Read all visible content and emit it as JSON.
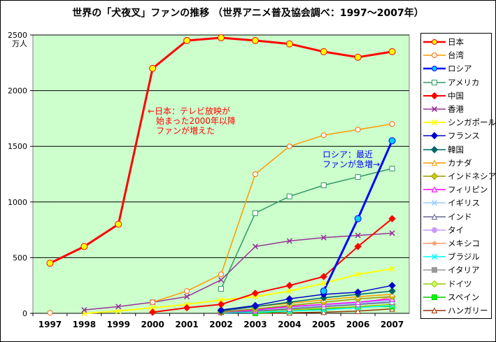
{
  "chart_data": {
    "type": "line",
    "title": "世界の「犬夜叉」ファンの推移 （世界アニメ普及協会調べ：1997～2007年）",
    "y_unit_label": "万人",
    "categories": [
      "1997",
      "1998",
      "1999",
      "2000",
      "2001",
      "2002",
      "2003",
      "2004",
      "2005",
      "2006",
      "2007"
    ],
    "ylim": [
      0,
      2500
    ],
    "yticks": [
      0,
      500,
      1000,
      1500,
      2000,
      2500
    ],
    "grid": true,
    "legend_position": "right",
    "series": [
      {
        "name": "日本",
        "color": "#ff0000",
        "marker": "circle",
        "markerFill": "#ffff00",
        "width": 3,
        "values": [
          450,
          600,
          800,
          2200,
          2450,
          2475,
          2450,
          2420,
          2350,
          2300,
          2350
        ]
      },
      {
        "name": "台湾",
        "color": "#ff9900",
        "marker": "circle",
        "markerFill": "#ffffff",
        "markerStroke": "#ff6600",
        "width": 1.5,
        "values": [
          5,
          null,
          null,
          100,
          200,
          350,
          1250,
          1500,
          1600,
          1650,
          1700
        ]
      },
      {
        "name": "ロシア",
        "color": "#0000ff",
        "marker": "circle",
        "markerFill": "#00ccff",
        "width": 3,
        "values": [
          null,
          null,
          null,
          null,
          null,
          null,
          null,
          null,
          200,
          850,
          1550
        ]
      },
      {
        "name": "アメリカ",
        "color": "#339966",
        "marker": "square",
        "markerFill": "#ffffff",
        "width": 1.5,
        "values": [
          null,
          null,
          null,
          null,
          null,
          220,
          900,
          1050,
          1150,
          1225,
          1300
        ]
      },
      {
        "name": "中国",
        "color": "#ff0000",
        "marker": "diamond",
        "markerFill": "#ff0000",
        "width": 2,
        "values": [
          null,
          null,
          null,
          10,
          50,
          80,
          180,
          250,
          330,
          600,
          850
        ]
      },
      {
        "name": "香港",
        "color": "#993399",
        "marker": "x",
        "markerFill": "#cc66cc",
        "width": 1.5,
        "values": [
          null,
          30,
          60,
          100,
          150,
          300,
          600,
          650,
          680,
          700,
          720
        ]
      },
      {
        "name": "シンガポール",
        "color": "#ffff00",
        "marker": "x",
        "markerFill": "#ffff00",
        "width": 2,
        "values": [
          null,
          0,
          20,
          50,
          80,
          120,
          150,
          200,
          270,
          350,
          400
        ]
      },
      {
        "name": "フランス",
        "color": "#0000cc",
        "marker": "diamond",
        "markerFill": "#0000cc",
        "width": 1.5,
        "values": [
          null,
          null,
          null,
          null,
          null,
          30,
          70,
          130,
          170,
          190,
          250
        ]
      },
      {
        "name": "韓国",
        "color": "#006666",
        "marker": "diamond",
        "markerFill": "#006666",
        "width": 1.5,
        "values": [
          null,
          null,
          null,
          null,
          null,
          20,
          60,
          100,
          140,
          170,
          200
        ]
      },
      {
        "name": "カナダ",
        "color": "#ff9900",
        "marker": "triangle",
        "markerFill": "#ffffff",
        "width": 1.5,
        "values": [
          null,
          null,
          null,
          null,
          null,
          30,
          60,
          90,
          120,
          150,
          170
        ]
      },
      {
        "name": "インドネシア",
        "color": "#999900",
        "marker": "diamond",
        "markerFill": "#cccc00",
        "width": 1.5,
        "values": [
          null,
          null,
          null,
          null,
          null,
          10,
          40,
          70,
          100,
          130,
          150
        ]
      },
      {
        "name": "フィリピン",
        "color": "#ff00ff",
        "marker": "triangle",
        "markerFill": "#ffffff",
        "width": 1.5,
        "values": [
          null,
          null,
          null,
          null,
          null,
          10,
          30,
          60,
          80,
          100,
          130
        ]
      },
      {
        "name": "イギリス",
        "color": "#99ccff",
        "marker": "x",
        "markerFill": "#99ccff",
        "width": 1.5,
        "values": [
          null,
          null,
          null,
          null,
          null,
          10,
          30,
          50,
          70,
          90,
          110
        ]
      },
      {
        "name": "インド",
        "color": "#666699",
        "marker": "triangle",
        "markerFill": "#ffffff",
        "width": 1.5,
        "values": [
          null,
          null,
          null,
          null,
          null,
          10,
          20,
          40,
          60,
          80,
          100
        ]
      },
      {
        "name": "タイ",
        "color": "#cc99ff",
        "marker": "circle",
        "markerFill": "#cc99ff",
        "width": 1.5,
        "values": [
          null,
          null,
          null,
          null,
          null,
          20,
          40,
          60,
          80,
          100,
          120
        ]
      },
      {
        "name": "メキシコ",
        "color": "#ff9966",
        "marker": "star",
        "markerFill": "#ff9966",
        "width": 1.5,
        "values": [
          null,
          null,
          null,
          null,
          null,
          10,
          20,
          40,
          60,
          80,
          150
        ]
      },
      {
        "name": "ブラジル",
        "color": "#00ffff",
        "marker": "x",
        "markerFill": "#00ffff",
        "width": 1.5,
        "values": [
          null,
          null,
          null,
          null,
          null,
          5,
          10,
          20,
          30,
          50,
          70
        ]
      },
      {
        "name": "イタリア",
        "color": "#999999",
        "marker": "square",
        "markerFill": "#999999",
        "width": 1.5,
        "values": [
          null,
          null,
          null,
          null,
          null,
          10,
          20,
          40,
          60,
          80,
          100
        ]
      },
      {
        "name": "ドイツ",
        "color": "#99cc00",
        "marker": "diamond",
        "markerFill": "#ccff66",
        "width": 1.5,
        "values": [
          null,
          null,
          null,
          null,
          null,
          5,
          15,
          30,
          45,
          60,
          80
        ]
      },
      {
        "name": "スペイン",
        "color": "#00cc00",
        "marker": "square",
        "markerFill": "#00ff00",
        "width": 1.5,
        "values": [
          null,
          null,
          null,
          null,
          null,
          null,
          0,
          20,
          40,
          60,
          60
        ]
      },
      {
        "name": "ハンガリー",
        "color": "#993300",
        "marker": "triangle",
        "markerFill": "#ffffff",
        "width": 1.5,
        "values": [
          null,
          null,
          null,
          null,
          null,
          null,
          0,
          5,
          10,
          20,
          40
        ]
      }
    ],
    "annotations": [
      {
        "text": "←日本：テレビ放映が\n　始まった2000年以降\n　ファンが増えた",
        "color": "#ff0000"
      },
      {
        "text": "ロシア：最近\nファンが急増→",
        "color": "#0000ff"
      }
    ],
    "plot_background": "#ccffcc"
  }
}
